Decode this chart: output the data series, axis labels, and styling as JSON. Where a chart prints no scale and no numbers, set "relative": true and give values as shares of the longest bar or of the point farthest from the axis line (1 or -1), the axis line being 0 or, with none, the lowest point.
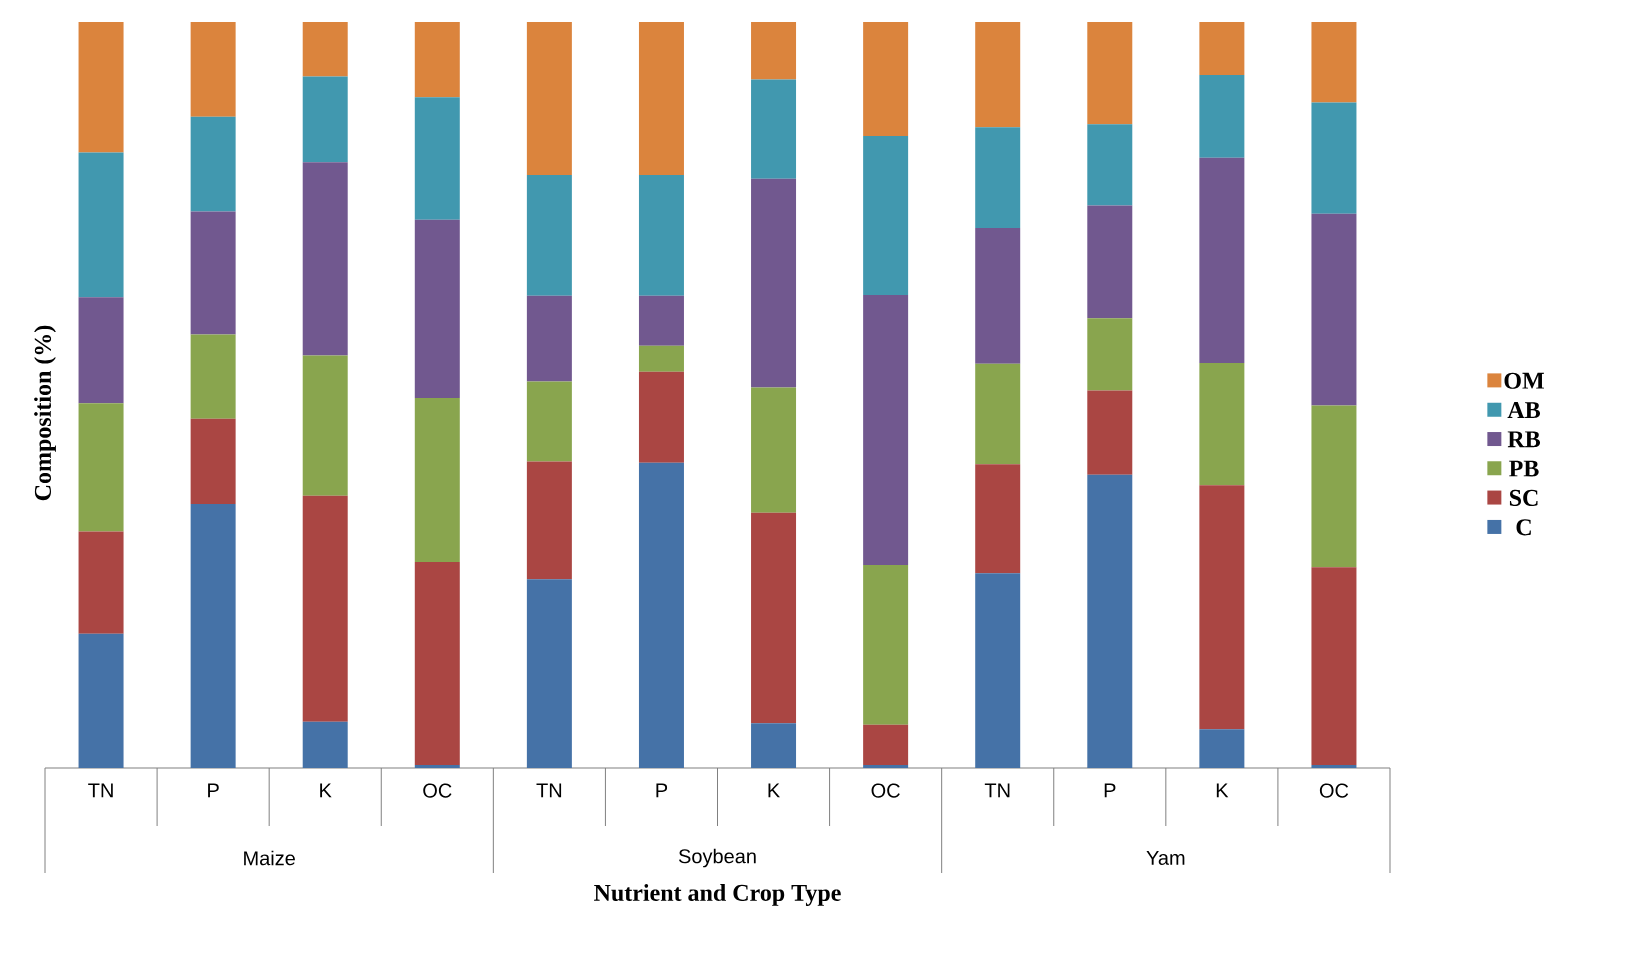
{
  "chart_data": {
    "type": "bar",
    "stacked": true,
    "relative": true,
    "legend": "right",
    "xlabel": "Nutrient and Crop Type",
    "ylabel": "Composition (%)",
    "categories": [
      "TN",
      "P",
      "K",
      "OC",
      "TN",
      "P",
      "K",
      "OC",
      "TN",
      "P",
      "K",
      "OC"
    ],
    "annotations": [
      "Maize",
      "Soybean",
      "Yam"
    ],
    "series": [
      {
        "name": "C",
        "color": "#4572a7",
        "values": [
          0.18,
          0.354,
          0.062,
          0.004,
          0.253,
          0.409,
          0.06,
          0.004,
          0.261,
          0.393,
          0.052,
          0.004
        ]
      },
      {
        "name": "SC",
        "color": "#aa4643",
        "values": [
          0.137,
          0.114,
          0.303,
          0.272,
          0.158,
          0.122,
          0.282,
          0.054,
          0.146,
          0.113,
          0.327,
          0.265
        ]
      },
      {
        "name": "PB",
        "color": "#89a54e",
        "values": [
          0.172,
          0.113,
          0.188,
          0.22,
          0.107,
          0.035,
          0.168,
          0.214,
          0.135,
          0.097,
          0.164,
          0.217
        ]
      },
      {
        "name": "RB",
        "color": "#71588f",
        "values": [
          0.142,
          0.165,
          0.259,
          0.239,
          0.115,
          0.067,
          0.28,
          0.362,
          0.182,
          0.151,
          0.275,
          0.257
        ]
      },
      {
        "name": "AB",
        "color": "#4198af",
        "values": [
          0.194,
          0.127,
          0.115,
          0.164,
          0.162,
          0.162,
          0.133,
          0.213,
          0.135,
          0.109,
          0.111,
          0.149
        ]
      },
      {
        "name": "OM",
        "color": "#db843d",
        "values": [
          0.175,
          0.127,
          0.073,
          0.101,
          0.205,
          0.205,
          0.077,
          0.153,
          0.141,
          0.137,
          0.071,
          0.108
        ]
      }
    ]
  }
}
